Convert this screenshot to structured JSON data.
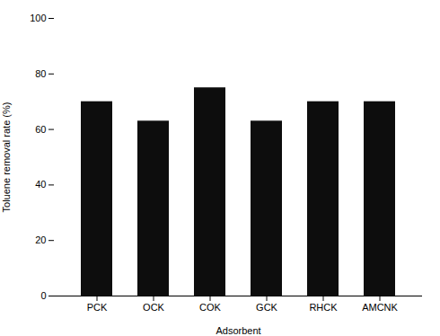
{
  "chart_data": {
    "type": "bar",
    "categories": [
      "PCK",
      "OCK",
      "COK",
      "GCK",
      "RHCK",
      "AMCNK"
    ],
    "values": [
      70,
      63,
      75,
      63,
      70,
      70
    ],
    "color": "#0d0d0d",
    "xlabel": "Adsorbent",
    "ylabel": "Toluene removal rate (%)",
    "ylim": [
      0,
      100
    ],
    "yticks": [
      0,
      20,
      40,
      60,
      80,
      100
    ]
  }
}
